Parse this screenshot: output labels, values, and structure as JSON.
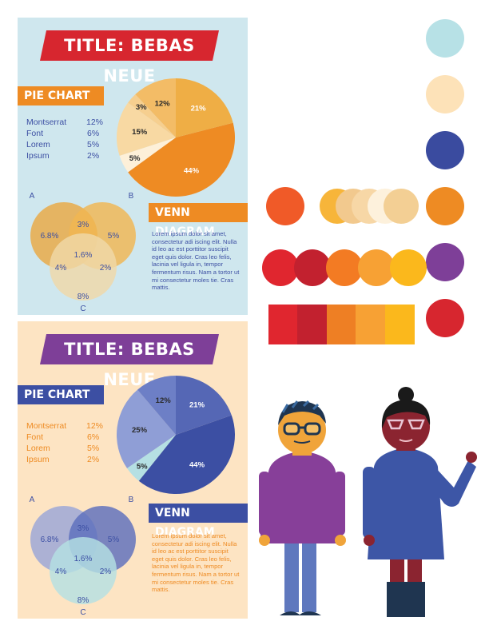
{
  "panels": [
    {
      "title": "TITLE: BEBAS NEUE",
      "pie_label": "PIE CHART",
      "venn_label": "VENN DIAGRAM",
      "legend": [
        {
          "name": "Montserrat",
          "value": "12%"
        },
        {
          "name": "Font",
          "value": "6%"
        },
        {
          "name": "Lorem",
          "value": "5%"
        },
        {
          "name": "Ipsum",
          "value": "2%"
        }
      ],
      "pie_slices": [
        {
          "label": "44%",
          "value": 44,
          "color": "#ee8b23"
        },
        {
          "label": "5%",
          "value": 5,
          "color": "#fdf0d9"
        },
        {
          "label": "15%",
          "value": 15,
          "color": "#f8d9a3"
        },
        {
          "label": "3%",
          "value": 3,
          "color": "#f6cf8f"
        },
        {
          "label": "12%",
          "value": 12,
          "color": "#f3bc66"
        },
        {
          "label": "21%",
          "value": 21,
          "color": "#efae45"
        }
      ],
      "venn": {
        "set_a": "A",
        "set_b": "B",
        "set_c": "C",
        "a_only": "6.8%",
        "ab": "3%",
        "b_only": "5%",
        "abc": "1.6%",
        "ac": "4%",
        "bc": "2%",
        "c_only": "8%"
      },
      "venn_colors": [
        "#e9a843",
        "#f0b652",
        "#efd8a8"
      ],
      "lorem": "Lorem ipsum dolor sit amet, consectetur adi iscing elit. Nulla id leo ac est porttitor suscipit eget quis dolor. Cras leo felis, lacinia vel ligula in, tempor fermentum risus. Nam a tortor ut mi consectetur moles tie. Cras mattis."
    },
    {
      "title": "TITLE: BEBAS NEUE",
      "pie_label": "PIE CHART",
      "venn_label": "VENN DIAGRAM",
      "legend": [
        {
          "name": "Montserrat",
          "value": "12%"
        },
        {
          "name": "Font",
          "value": "6%"
        },
        {
          "name": "Lorem",
          "value": "5%"
        },
        {
          "name": "Ipsum",
          "value": "2%"
        }
      ],
      "pie_slices": [
        {
          "label": "44%",
          "value": 44,
          "color": "#3c4fa3"
        },
        {
          "label": "5%",
          "value": 5,
          "color": "#b5e0e3"
        },
        {
          "label": "25%",
          "value": 25,
          "color": "#8f9ed6"
        },
        {
          "label": "12%",
          "value": 12,
          "color": "#6d7fc6"
        },
        {
          "label": "21%",
          "value": 21,
          "color": "#5567b5"
        }
      ],
      "venn": {
        "set_a": "A",
        "set_b": "B",
        "set_c": "C",
        "a_only": "6.8%",
        "ab": "3%",
        "b_only": "5%",
        "abc": "1.6%",
        "ac": "4%",
        "bc": "2%",
        "c_only": "8%"
      },
      "venn_colors": [
        "#9aa6d8",
        "#5d6fbd",
        "#b5e0e3"
      ],
      "lorem": "Lorem ipsum dolor sit amet, consectetur adi iscing elit. Nulla id leo ac est porttitor suscipit eget quis dolor. Cras leo felis, lacinia vel ligula in, tempor fermentum risus. Nam a tortor ut mi consectetur moles tie. Cras mattis."
    }
  ],
  "colors": {
    "title_red": "#d7262f",
    "title_purple": "#7e3f98",
    "label_orange": "#ee8b23",
    "label_blue": "#3c4fa3",
    "text_blue": "#3c4fa3",
    "text_orange": "#ee8b23"
  },
  "palette": {
    "column": [
      "#b7e1e6",
      "#fde2b8",
      "#3a4b9f",
      "#ee8b23",
      "#7e3f98",
      "#d7262f"
    ],
    "single": "#f05a28",
    "warm_row": [
      "#f7b53a",
      "#f2c98e",
      "#f7d7a6",
      "#fdf1dc",
      "#f3cf94"
    ],
    "red_row": [
      "#e0262f",
      "#c2212f",
      "#f37b23",
      "#f7a134",
      "#fbb81c"
    ],
    "strip": [
      "#e0262f",
      "#c2212f",
      "#ee7f24",
      "#f7a134",
      "#fbb81c"
    ]
  }
}
